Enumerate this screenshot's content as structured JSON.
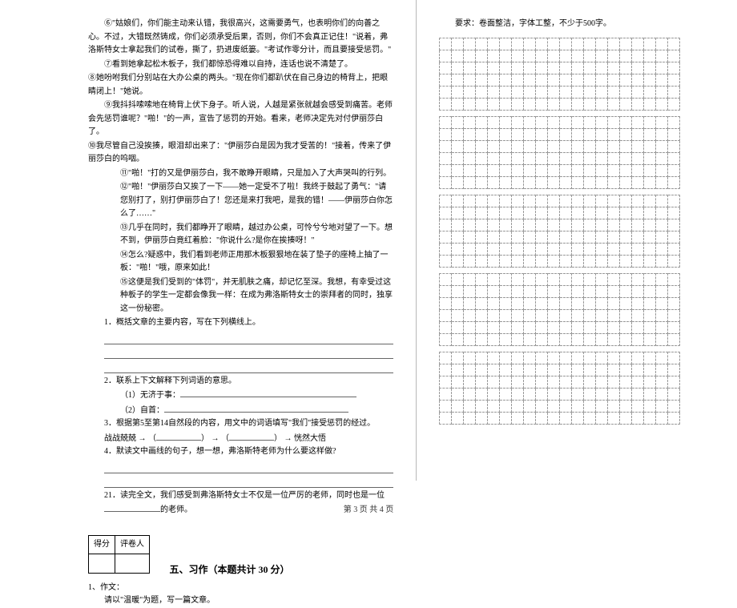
{
  "left": {
    "paras": [
      "⑥\"姑娘们，你们能主动来认错，我很高兴，这需要勇气，也表明你们的向善之心。不过，大错既然铸成，你们必须承受后果，否则，你们不会真正记住！\"说着，弗洛斯特女士拿起我们的试卷，撕了，扔进废纸篓。\"考试作零分计，而且要接受惩罚。\"",
      "⑦看到她拿起松木板子，我们都惊恐得难以自持，连话也说不清楚了。",
      "⑧她吩咐我们分别站在大办公桌的两头。\"现在你们都趴伏在自己身边的椅背上，把眼睛闭上！\"她说。",
      "⑨我抖抖嗦嗦地在椅背上伏下身子。听人说，人越是紧张就越会感受到痛苦。老师会先惩罚谁呢？\"啪！\"的一声，宣告了惩罚的开始。看来，老师决定先对付伊丽莎白了。",
      "⑩我尽管自己没挨揍，眼泪却出来了：\"伊丽莎白是因为我才受苦的！\"接着，传来了伊丽莎白的呜咽。",
      "⑪\"啪！\"打的又是伊丽莎白，我不敢睁开眼睛，只是加入了大声哭叫的行列。",
      "⑫\"啪！\"伊丽莎白又挨了一下——她一定受不了啦！我终于鼓起了勇气：\"请您别打了，别打伊丽莎白了！您还是来打我吧，是我的错！——伊丽莎白你怎么了……\"",
      "⑬几乎在同时，我们都睁开了眼睛，越过办公桌，可怜兮兮地对望了一下。想不到，伊丽莎白竟红着脸：\"你说什么?是你在挨揍呀！\"",
      "⑭怎么?疑惑中，我们看到老师正用那木板狠狠地在装了垫子的座椅上抽了一板：\"啪！\"哦，原来如此！",
      "⑮这便是我们受到的\"体罚\"，并无肌肤之痛，却记忆至深。我想，有幸受过这种板子的学生一定都会像我一样：在成为弗洛斯特女士的崇拜者的同时，独享这一份秘密。"
    ],
    "q1": "1．概括文章的主要内容，写在下列横线上。",
    "q2": "2．联系上下文解释下列词语的意思。",
    "q2a": "（1）无济于事：",
    "q2b": "（2）自首：",
    "q3_pre": "3．根据第5至第14自然段的内容，用文中的词语填写\"我们\"接受惩罚的经过。",
    "q3_flow_a": "战战兢兢 → （",
    "q3_flow_b": "） → （",
    "q3_flow_c": "） → 恍然大悟",
    "q4": "4．默读文中画线的句子，想一想，弗洛斯特老师为什么要这样做?",
    "q21a": "21．读完全文，我们感受到弗洛斯特女士不仅是一位严厉的老师，同时也是一位",
    "q21b": "的老师。",
    "scoreHeaders": [
      "得分",
      "评卷人"
    ],
    "sectionTitle": "五、习作（本题共计 30 分）",
    "zw1": "1、作文：",
    "zw2": "请以\"温暖\"为题，写一篇文章。"
  },
  "right": {
    "req": "要求：卷面整洁，字体工整，不少于500字。"
  },
  "grid": {
    "cols": 20,
    "blockRows": 6,
    "blocks": 5,
    "borderColor": "#9a9a9a",
    "cellSize": 15
  },
  "footer": "第 3 页  共 4 页",
  "colors": {
    "bg": "#ffffff",
    "text": "#000000",
    "rule": "#666666",
    "divider": "#b8b8b8"
  }
}
